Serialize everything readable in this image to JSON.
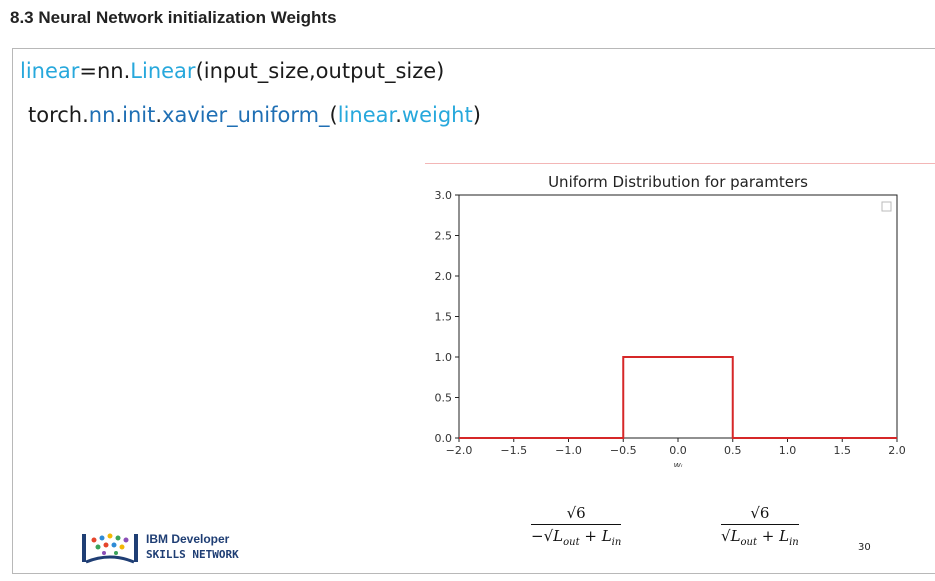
{
  "page": {
    "heading": "8.3 Neural Network initialization Weights"
  },
  "code": {
    "line1": {
      "var": "linear",
      "eq": "=nn.",
      "cls": "Linear",
      "args": "(input_size,output_size)"
    },
    "line2": {
      "mod": "torch.",
      "nn": "nn",
      "dot1": ".",
      "init": "init",
      "dot2": ".",
      "fn": "xavier_uniform_",
      "open": "(",
      "arg_obj": "linear",
      "dot3": ".",
      "arg_attr": "weight",
      "close": ")"
    }
  },
  "chart_data": {
    "type": "line",
    "title": "Uniform Distribution for paramters",
    "xlabel": "wᵢ",
    "ylabel": "",
    "xlim": [
      -2.0,
      2.0
    ],
    "ylim": [
      0.0,
      3.0
    ],
    "xticks": [
      "−2.0",
      "−1.5",
      "−1.0",
      "−0.5",
      "0.0",
      "0.5",
      "1.0",
      "1.5",
      "2.0"
    ],
    "yticks": [
      "0.0",
      "0.5",
      "1.0",
      "1.5",
      "2.0",
      "2.5",
      "3.0"
    ],
    "grid": false,
    "legend": "top-right",
    "series": [
      {
        "color": "#d62728",
        "x": [
          -2.0,
          -0.5,
          -0.5,
          0.5,
          0.5,
          2.0
        ],
        "y": [
          0.0,
          0.0,
          1.0,
          1.0,
          0.0,
          0.0
        ]
      }
    ]
  },
  "formulas": {
    "left": {
      "num": "√6",
      "den": "−√L_out + L_in"
    },
    "right": {
      "num": "√6",
      "den": "√L_out + L_in"
    }
  },
  "logo": {
    "line1": "IBM Developer",
    "line2": "SKILLS NETWORK"
  },
  "slide_number": "30"
}
